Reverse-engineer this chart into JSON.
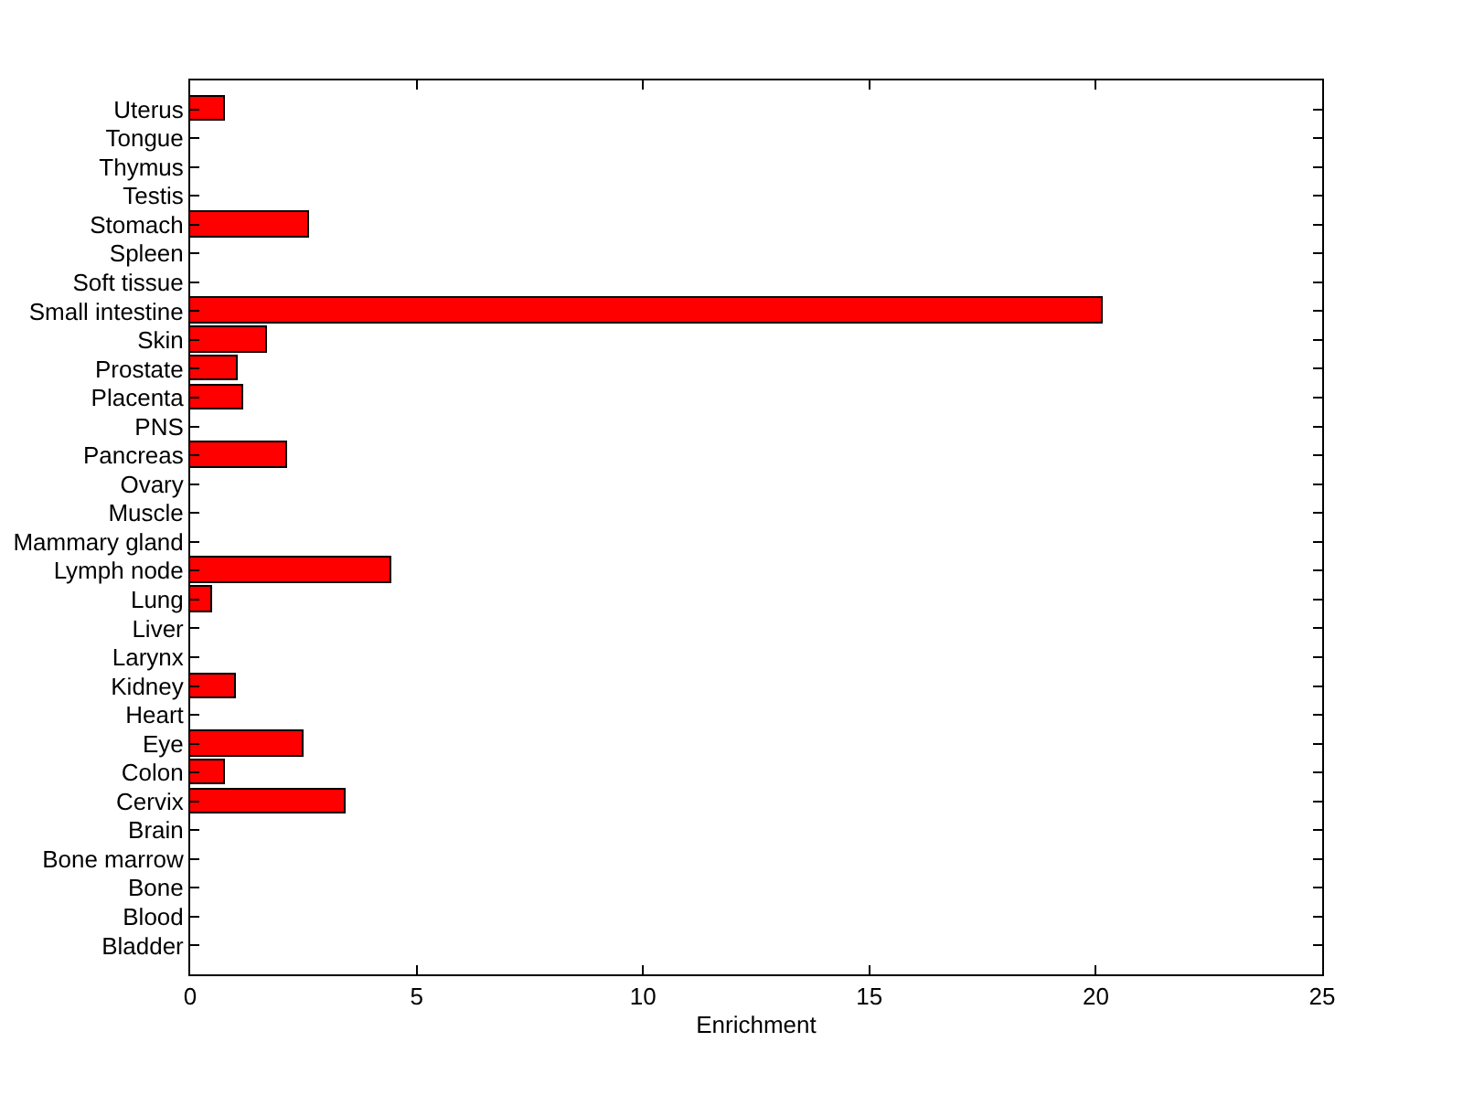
{
  "chart_data": {
    "type": "bar",
    "orientation": "horizontal",
    "xlabel": "Enrichment",
    "categories": [
      "Uterus",
      "Tongue",
      "Thymus",
      "Testis",
      "Stomach",
      "Spleen",
      "Soft tissue",
      "Small intestine",
      "Skin",
      "Prostate",
      "Placenta",
      "PNS",
      "Pancreas",
      "Ovary",
      "Muscle",
      "Mammary gland",
      "Lymph node",
      "Lung",
      "Liver",
      "Larynx",
      "Kidney",
      "Heart",
      "Eye",
      "Colon",
      "Cervix",
      "Brain",
      "Bone marrow",
      "Bone",
      "Blood",
      "Bladder"
    ],
    "values": [
      0.78,
      0,
      0,
      0,
      2.64,
      0,
      0,
      20.16,
      1.71,
      1.06,
      1.19,
      0,
      2.15,
      0,
      0,
      0,
      4.45,
      0.5,
      0,
      0,
      1.02,
      0,
      2.52,
      0.78,
      3.44,
      0,
      0,
      0,
      0,
      0
    ],
    "color": "#ff0000",
    "xlim": [
      0,
      25
    ],
    "xticks": [
      0,
      5,
      10,
      15,
      20,
      25
    ]
  }
}
